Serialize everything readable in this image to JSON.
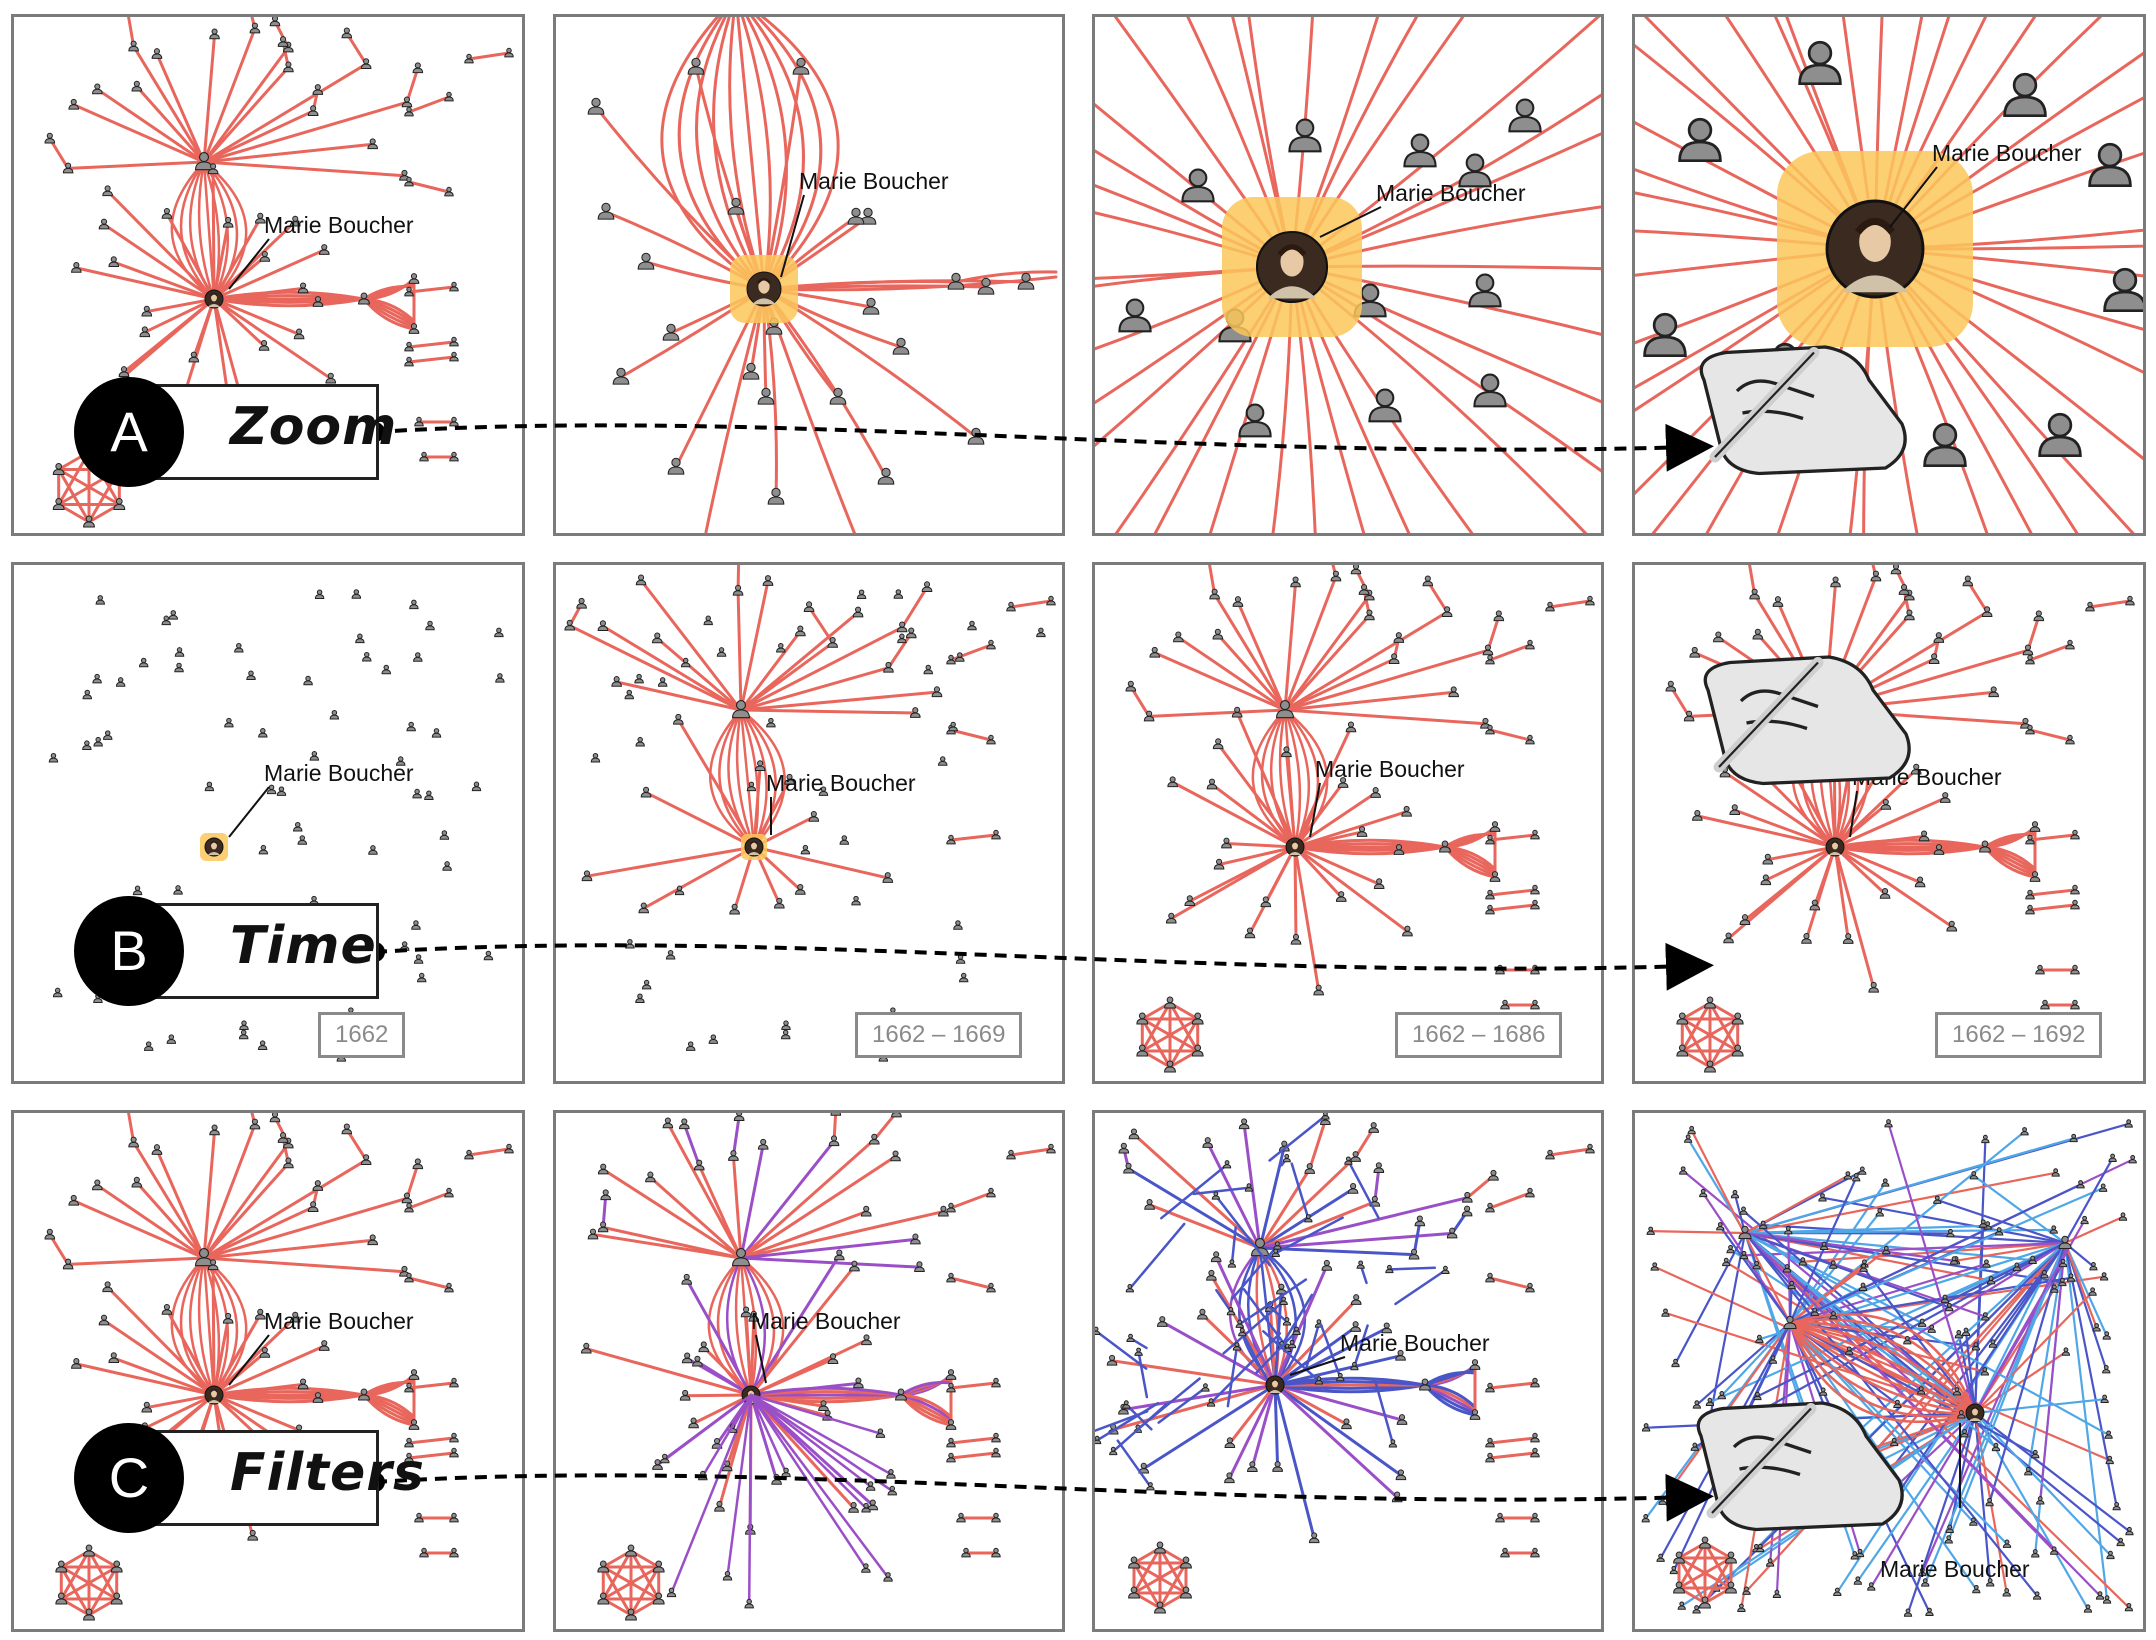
{
  "focus_person": "Marie Boucher",
  "rows": [
    {
      "id": "zoom",
      "letter": "A",
      "label": "Zoom"
    },
    {
      "id": "time",
      "letter": "B",
      "label": "Time"
    },
    {
      "id": "filters",
      "letter": "C",
      "label": "Filters"
    }
  ],
  "time_ranges": [
    "1662",
    "1662 – 1669",
    "1662 – 1686",
    "1662 – 1692"
  ],
  "colors": {
    "edge_default": "#e8665c",
    "edge_purple": "#9b4fc7",
    "edge_blue": "#4a56c8",
    "edge_lightblue": "#4fa7e8",
    "highlight": "#fbc75a",
    "node": "#8e8e8e",
    "panel_border": "#7b7b7b"
  },
  "icons": [
    "person-icon",
    "portrait-icon",
    "hand-pen-icon",
    "arrow-icon"
  ]
}
